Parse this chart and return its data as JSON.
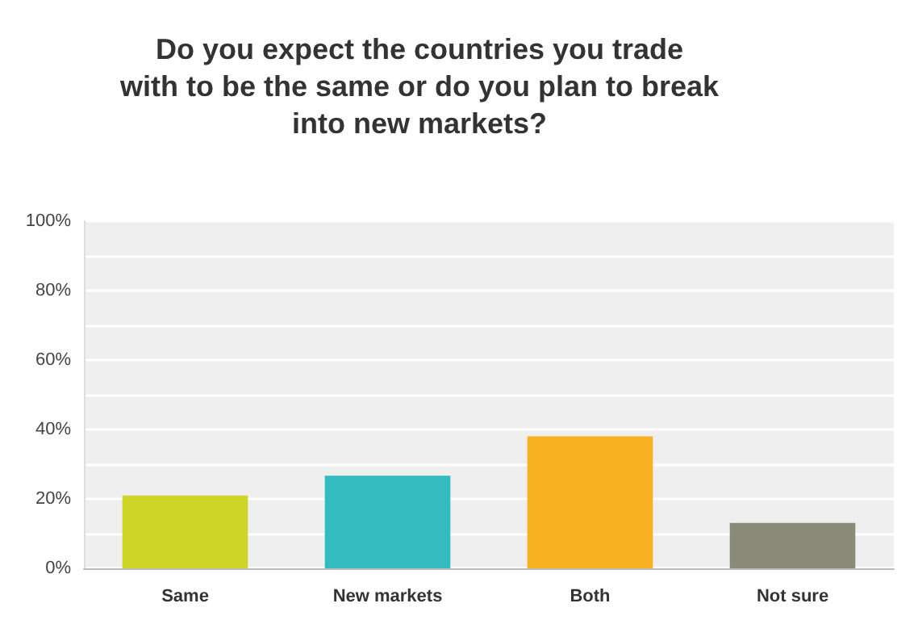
{
  "chart_data": {
    "type": "bar",
    "title": "Do you expect the countries you trade\nwith to be the same or do you plan to break\ninto new markets?",
    "categories": [
      "Same",
      "New markets",
      "Both",
      "Not sure"
    ],
    "values": [
      21,
      26.7,
      38,
      13.1
    ],
    "colors": [
      "#cfd628",
      "#33bcbf",
      "#f7b01f",
      "#8a8a7a"
    ],
    "ylim": [
      0,
      100
    ],
    "yticks": [
      {
        "value": 0,
        "label": "0%"
      },
      {
        "value": 10,
        "label": null
      },
      {
        "value": 20,
        "label": "20%"
      },
      {
        "value": 30,
        "label": null
      },
      {
        "value": 40,
        "label": "40%"
      },
      {
        "value": 50,
        "label": null
      },
      {
        "value": 60,
        "label": "60%"
      },
      {
        "value": 70,
        "label": null
      },
      {
        "value": 80,
        "label": "80%"
      },
      {
        "value": 90,
        "label": null
      },
      {
        "value": 100,
        "label": "100%"
      }
    ],
    "grid": "y"
  }
}
